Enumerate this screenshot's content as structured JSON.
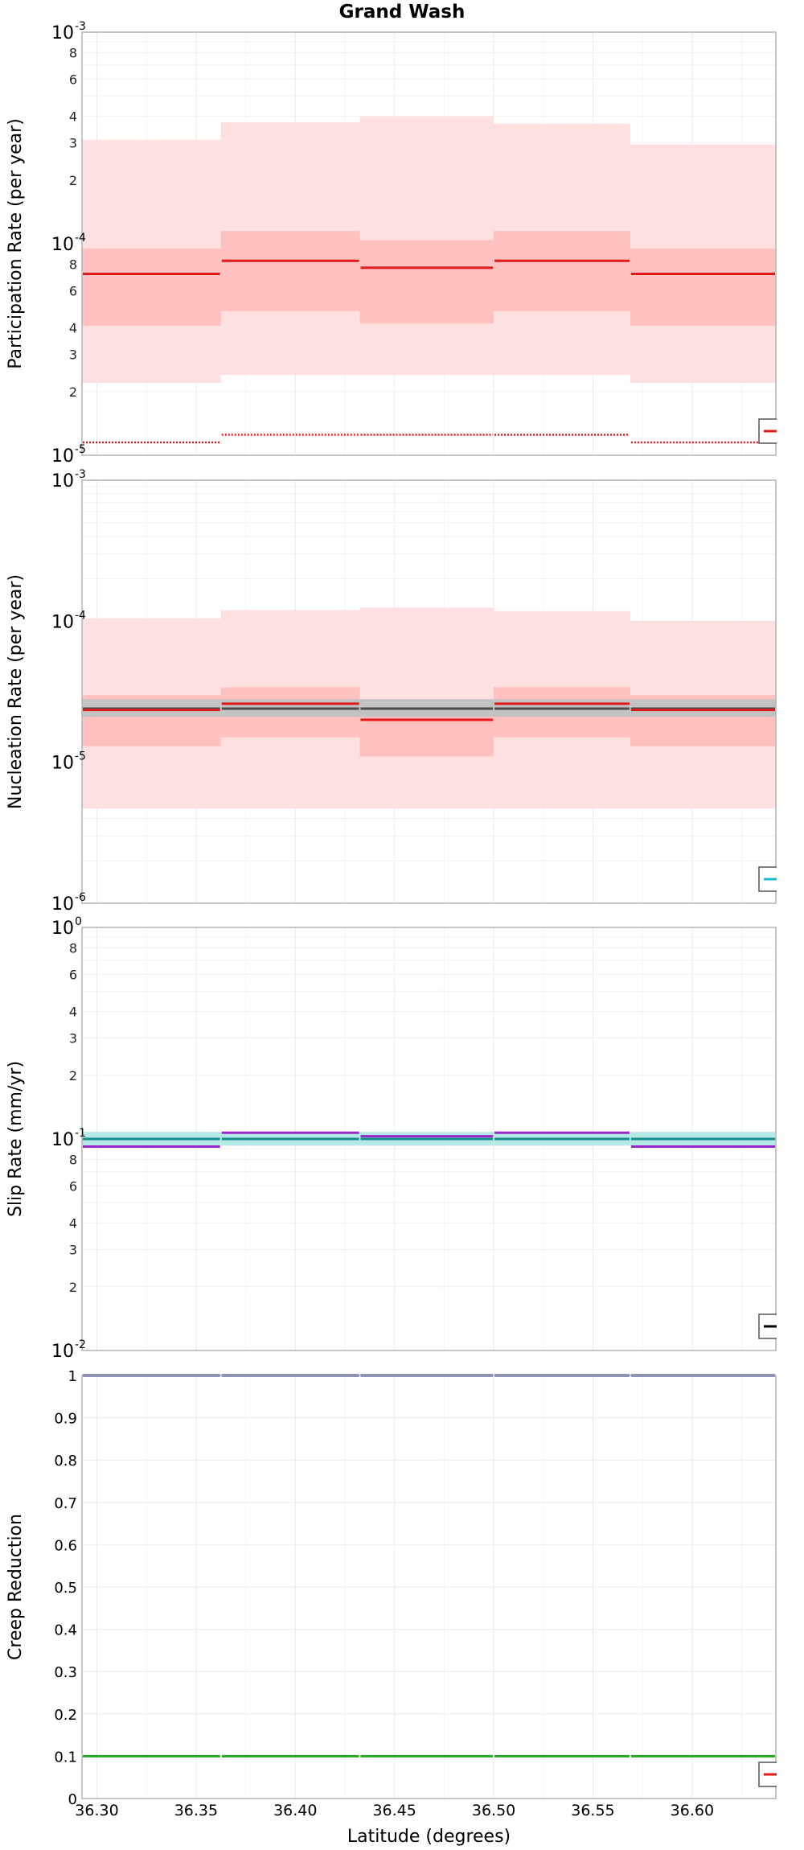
{
  "figure_title": "Grand Wash",
  "chart_data": [
    {
      "type": "step",
      "name": "participation",
      "title": "Grand Wash",
      "ylabel": "Participation Rate (per year)",
      "xlabel": "",
      "scale": "log",
      "ylim_exp": [
        -5,
        -3
      ],
      "major_ticks": [
        {
          "base": "10",
          "exp": "-3"
        },
        {
          "base": "10",
          "exp": "-4"
        },
        {
          "base": "10",
          "exp": "-5"
        }
      ],
      "minor_tick_labels": [
        "8",
        "6",
        "4",
        "3",
        "2"
      ],
      "bin_edges": [
        36.2925,
        36.3625,
        36.4325,
        36.5,
        36.5688,
        36.6422
      ],
      "bands": [
        {
          "name": "outer-band",
          "color": "#ffe0e0",
          "lower": [
            2.2e-05,
            2.4e-05,
            2.4e-05,
            2.4e-05,
            2.2e-05
          ],
          "upper": [
            0.00031,
            0.000375,
            0.0004,
            0.00037,
            0.000295
          ]
        },
        {
          "name": "inner-band",
          "color": "#ffc0c0",
          "lower": [
            4.1e-05,
            4.8e-05,
            4.2e-05,
            4.8e-05,
            4.1e-05
          ],
          "upper": [
            9.5e-05,
            0.000115,
            0.000104,
            0.000115,
            9.5e-05
          ]
        }
      ],
      "series": [
        {
          "name": "mean",
          "color": "#e31a1c",
          "style": "solid",
          "values": [
            7.2e-05,
            8.3e-05,
            7.7e-05,
            8.3e-05,
            7.2e-05
          ]
        },
        {
          "name": "minimum",
          "color": "#e31a1c",
          "style": "dotted",
          "values": [
            1.15e-05,
            1.25e-05,
            1.25e-05,
            1.25e-05,
            1.15e-05
          ]
        }
      ],
      "legend": [
        {
          "color": "#e31a1c"
        }
      ]
    },
    {
      "type": "step",
      "name": "nucleation",
      "ylabel": "Nucleation Rate (per year)",
      "xlabel": "",
      "scale": "log",
      "ylim_exp": [
        -6,
        -3
      ],
      "major_ticks": [
        {
          "base": "10",
          "exp": "-3"
        },
        {
          "base": "10",
          "exp": "-4"
        },
        {
          "base": "10",
          "exp": "-5"
        },
        {
          "base": "10",
          "exp": "-6"
        }
      ],
      "minor_tick_labels": [],
      "bin_edges": [
        36.2925,
        36.3625,
        36.4325,
        36.5,
        36.5688,
        36.6422
      ],
      "bands": [
        {
          "name": "outer-band",
          "color": "#ffe0e0",
          "lower": [
            4.7e-06,
            4.7e-06,
            4.7e-06,
            4.7e-06,
            4.7e-06
          ],
          "upper": [
            0.000105,
            0.00012,
            0.000125,
            0.000118,
            0.0001
          ]
        },
        {
          "name": "inner-band",
          "color": "#ffc0c0",
          "lower": [
            1.3e-05,
            1.5e-05,
            1.1e-05,
            1.5e-05,
            1.3e-05
          ],
          "upper": [
            3e-05,
            3.4e-05,
            2.8e-05,
            3.4e-05,
            3e-05
          ]
        },
        {
          "name": "gray-band",
          "color": "#c3c3c3",
          "lower": [
            2.1e-05,
            2.1e-05,
            2.1e-05,
            2.1e-05,
            2.1e-05
          ],
          "upper": [
            2.8e-05,
            2.8e-05,
            2.8e-05,
            2.8e-05,
            2.8e-05
          ]
        }
      ],
      "series": [
        {
          "name": "target",
          "color": "#4d4d4d",
          "style": "solid",
          "values": [
            2.4e-05,
            2.4e-05,
            2.4e-05,
            2.4e-05,
            2.4e-05
          ]
        },
        {
          "name": "mean",
          "color": "#e31a1c",
          "style": "solid",
          "values": [
            2.35e-05,
            2.6e-05,
            2e-05,
            2.6e-05,
            2.35e-05
          ]
        }
      ],
      "legend": [
        {
          "color": "#1fb8d0"
        }
      ]
    },
    {
      "type": "step",
      "name": "slip-rate",
      "ylabel": "Slip Rate (mm/yr)",
      "xlabel": "",
      "scale": "log",
      "ylim_exp": [
        -2,
        0
      ],
      "major_ticks": [
        {
          "base": "10",
          "exp": "0"
        },
        {
          "base": "10",
          "exp": "-1"
        },
        {
          "base": "10",
          "exp": "-2"
        }
      ],
      "minor_tick_labels": [
        "8",
        "6",
        "4",
        "3",
        "2"
      ],
      "bin_edges": [
        36.2925,
        36.3625,
        36.4325,
        36.5,
        36.5688,
        36.6422
      ],
      "bands": [
        {
          "name": "cyan-band",
          "color": "#b5e9e9",
          "lower": [
            0.093,
            0.093,
            0.093,
            0.093,
            0.093
          ],
          "upper": [
            0.108,
            0.108,
            0.108,
            0.108,
            0.108
          ]
        }
      ],
      "series": [
        {
          "name": "target",
          "color": "#1a8a8a",
          "style": "solid",
          "values": [
            0.1,
            0.1,
            0.1,
            0.1,
            0.1
          ]
        },
        {
          "name": "solution",
          "color": "#9b27c9",
          "style": "solid",
          "values": [
            0.092,
            0.107,
            0.103,
            0.107,
            0.092
          ]
        }
      ],
      "legend": [
        {
          "color": "#000000"
        }
      ]
    },
    {
      "type": "step",
      "name": "creep-reduction",
      "ylabel": "Creep Reduction",
      "xlabel": "Latitude (degrees)",
      "scale": "linear",
      "ylim": [
        0,
        1
      ],
      "y_ticks": [
        "0",
        "0.1",
        "0.2",
        "0.3",
        "0.4",
        "0.5",
        "0.6",
        "0.7",
        "0.8",
        "0.9",
        "1"
      ],
      "x_ticks": [
        "36.30",
        "36.35",
        "36.40",
        "36.45",
        "36.50",
        "36.55",
        "36.60"
      ],
      "xlim": [
        36.2925,
        36.6422
      ],
      "bin_edges": [
        36.2925,
        36.3625,
        36.4325,
        36.5,
        36.5688,
        36.6422
      ],
      "series": [
        {
          "name": "coupling",
          "color": "#1f2a8a",
          "style": "solid",
          "values": [
            1,
            1,
            1,
            1,
            1
          ]
        },
        {
          "name": "reduction",
          "color": "#22aa22",
          "style": "solid",
          "values": [
            0.1,
            0.1,
            0.1,
            0.1,
            0.1
          ]
        }
      ],
      "legend": [
        {
          "color": "#e31a1c"
        }
      ]
    }
  ]
}
